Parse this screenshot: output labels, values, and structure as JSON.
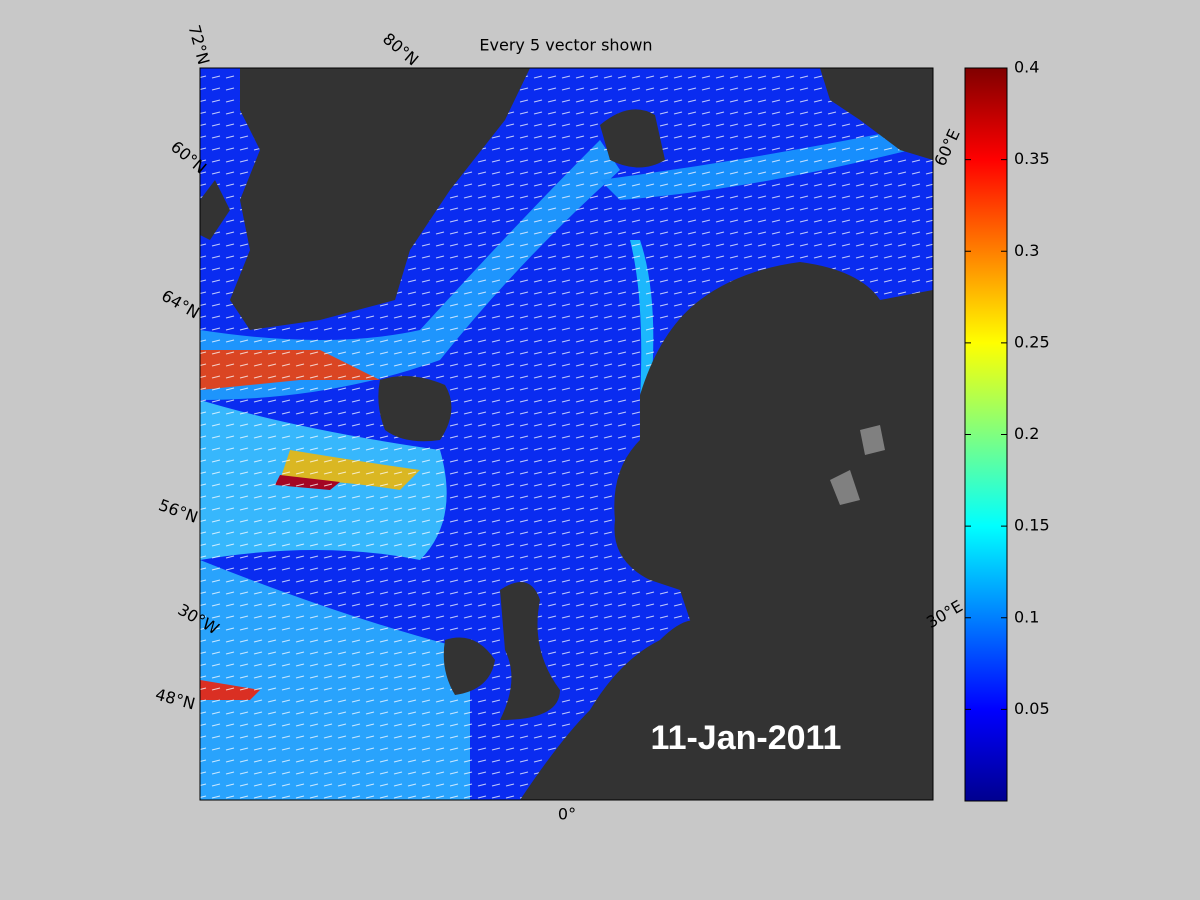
{
  "title": "Every 5 vector shown",
  "date": "11-Jan-2011",
  "map_labels": {
    "lat": [
      "72°N",
      "80°N",
      "60°N",
      "64°N",
      "56°N",
      "48°N"
    ],
    "lon": [
      "30°W",
      "0°",
      "30°E",
      "60°E"
    ]
  },
  "colorbar": {
    "lim": [
      0,
      0.4
    ],
    "ticks": [
      0.05,
      0.1,
      0.15,
      0.2,
      0.25,
      0.3,
      0.35,
      0.4
    ]
  }
}
